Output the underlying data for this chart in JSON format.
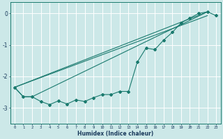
{
  "xlabel": "Humidex (Indice chaleur)",
  "background_color": "#cce8e8",
  "grid_color": "#ffffff",
  "line_color": "#1a7a6e",
  "xlim": [
    -0.5,
    23.5
  ],
  "ylim": [
    -3.5,
    0.35
  ],
  "x_ticks": [
    0,
    1,
    2,
    3,
    4,
    5,
    6,
    7,
    8,
    9,
    10,
    11,
    12,
    13,
    14,
    15,
    16,
    17,
    18,
    19,
    20,
    21,
    22,
    23
  ],
  "y_ticks": [
    0,
    -1,
    -2,
    -3
  ],
  "line1_x": [
    0,
    1,
    2,
    3,
    4,
    5,
    6,
    7,
    8,
    9,
    10,
    11,
    12,
    13,
    14,
    15,
    16,
    17,
    18,
    19,
    20,
    21,
    22,
    23
  ],
  "line1_y": [
    -2.35,
    -2.65,
    -2.65,
    -2.8,
    -2.9,
    -2.78,
    -2.88,
    -2.75,
    -2.8,
    -2.68,
    -2.58,
    -2.58,
    -2.48,
    -2.48,
    -1.55,
    -1.1,
    -1.15,
    -0.85,
    -0.6,
    -0.3,
    -0.15,
    0.0,
    0.05,
    -0.07
  ],
  "line2_x": [
    0,
    22
  ],
  "line2_y": [
    -2.35,
    0.05
  ],
  "line3_x": [
    0,
    22
  ],
  "line3_y": [
    -2.35,
    -0.07
  ],
  "line4_x": [
    0,
    1,
    2,
    22
  ],
  "line4_y": [
    -2.35,
    -2.65,
    -2.65,
    0.05
  ]
}
